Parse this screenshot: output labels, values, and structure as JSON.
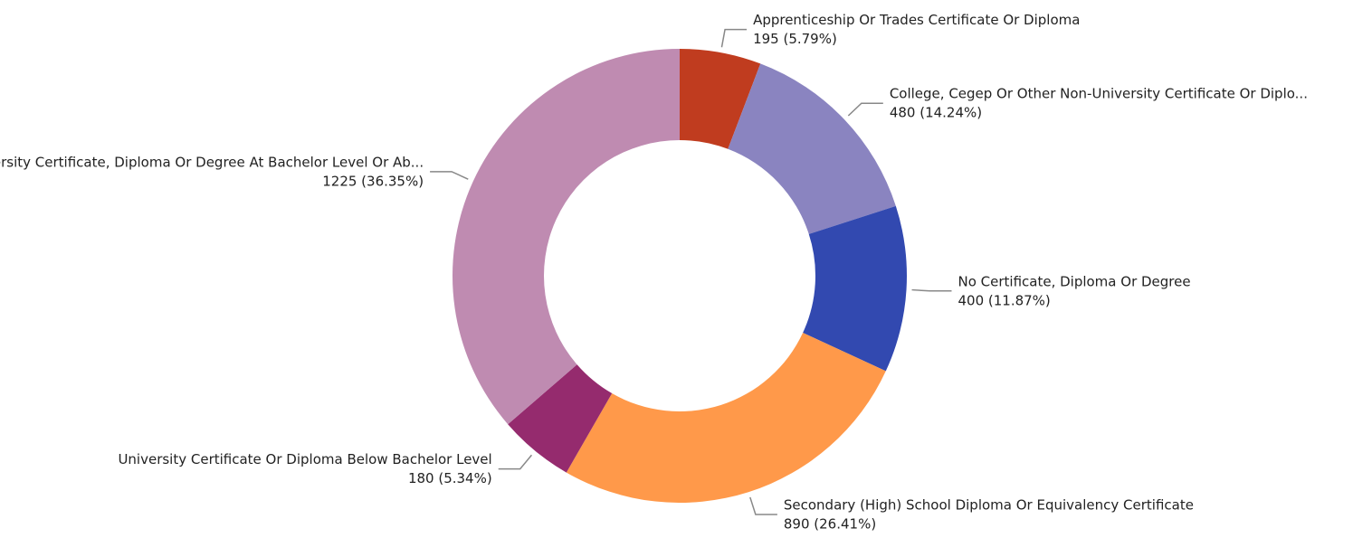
{
  "chart_data": {
    "type": "donut",
    "categories": [
      "Apprenticeship Or Trades Certificate Or Diploma",
      "College, Cegep Or Other Non-University Certificate Or Diplo...",
      "No Certificate, Diploma Or Degree",
      "Secondary (High) School Diploma Or Equivalency Certificate",
      "University Certificate Or Diploma Below Bachelor Level",
      "University Certificate, Diploma Or Degree At Bachelor Level Or Ab..."
    ],
    "values": [
      195,
      480,
      400,
      890,
      180,
      1225
    ],
    "value_labels": [
      "195 (5.79%)",
      "480 (14.24%)",
      "400 (11.87%)",
      "890 (26.41%)",
      "180 (5.34%)",
      "1225 (36.35%)"
    ],
    "colors": [
      "#c03c1f",
      "#8a84c0",
      "#3249b0",
      "#ff994a",
      "#952b6e",
      "#bf8bb1"
    ]
  }
}
